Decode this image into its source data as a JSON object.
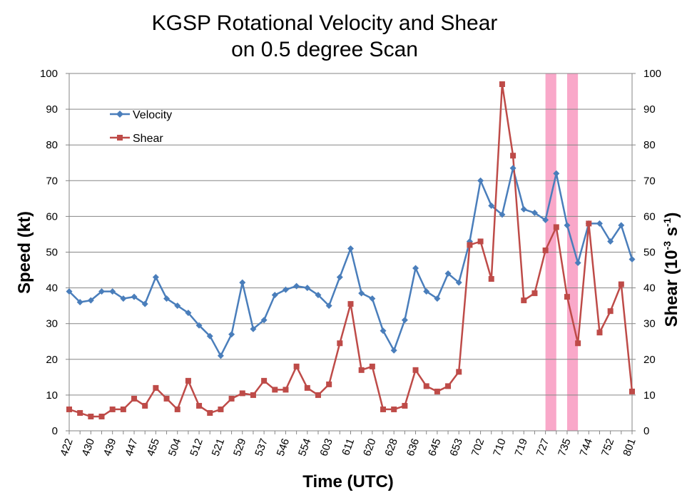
{
  "chart_data": {
    "type": "line",
    "title_lines": [
      "KGSP Rotational Velocity and Shear",
      "on 0.5 degree Scan"
    ],
    "xlabel": "Time (UTC)",
    "ylabel": "Speed (kt)",
    "y2label_main": "Shear (10",
    "y2label_sup1": "-3",
    "y2label_mid": " s",
    "y2label_sup2": "-1",
    "y2label_end": ")",
    "ylim": [
      0,
      100
    ],
    "y2lim": [
      0,
      100
    ],
    "y_ticks": [
      "0",
      "10",
      "20",
      "30",
      "40",
      "50",
      "60",
      "70",
      "80",
      "90",
      "100"
    ],
    "x_tick_labels": [
      "422",
      "430",
      "439",
      "447",
      "455",
      "504",
      "512",
      "521",
      "529",
      "537",
      "546",
      "554",
      "603",
      "611",
      "620",
      "628",
      "636",
      "645",
      "653",
      "702",
      "710",
      "719",
      "727",
      "735",
      "744",
      "752",
      "801"
    ],
    "grid": true,
    "legend_position": "upper-left",
    "highlight_bands": [
      {
        "start_index": 44,
        "end_index": 45,
        "color": "#f9a8c9"
      },
      {
        "start_index": 46,
        "end_index": 47,
        "color": "#f9a8c9"
      }
    ],
    "series": [
      {
        "name": "Velocity",
        "axis": "left",
        "color": "#4a7ebb",
        "marker": "diamond",
        "values": [
          39,
          36,
          36.5,
          39,
          39,
          37,
          37.5,
          35.5,
          43,
          37,
          35,
          33,
          29.5,
          26.5,
          21,
          27,
          41.5,
          28.5,
          31,
          38,
          39.5,
          40.5,
          40,
          38,
          35,
          43,
          51,
          38.5,
          37,
          28,
          22.5,
          31,
          45.5,
          39,
          37,
          44,
          41.5,
          53,
          70,
          63,
          60.5,
          73.5,
          62,
          61,
          59,
          72,
          57.5,
          47,
          58,
          58,
          53,
          57.5,
          48
        ]
      },
      {
        "name": "Shear",
        "axis": "right",
        "color": "#be4b48",
        "marker": "square",
        "values": [
          6,
          5,
          4,
          4,
          6,
          6,
          9,
          7,
          12,
          9,
          6,
          14,
          7,
          5,
          6,
          9,
          10.5,
          10,
          14,
          11.5,
          11.5,
          18,
          12,
          10,
          13,
          24.5,
          35.5,
          17,
          18,
          6,
          6,
          7,
          17,
          12.5,
          11,
          12.5,
          16.5,
          52,
          53,
          42.5,
          97,
          77,
          36.5,
          38.5,
          50.5,
          57,
          37.5,
          24.5,
          58,
          27.5,
          33.5,
          41,
          11
        ]
      }
    ]
  }
}
